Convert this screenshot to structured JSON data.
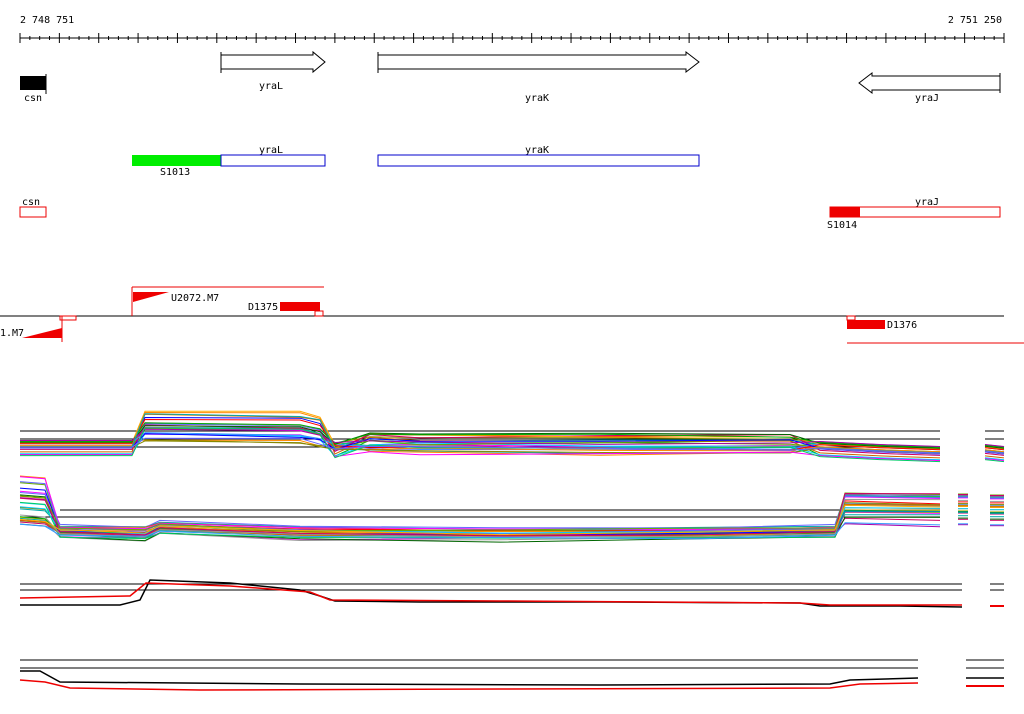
{
  "browser": {
    "coord_start": "2 748 751",
    "coord_end": "2 751 250"
  },
  "genes": [
    {
      "id": "csn",
      "label": "csn",
      "strand": "+",
      "kind": "block"
    },
    {
      "id": "yraL",
      "label": "yraL",
      "strand": "+",
      "kind": "arrow"
    },
    {
      "id": "yraK",
      "label": "yraK",
      "strand": "+",
      "kind": "arrow"
    },
    {
      "id": "yraJ",
      "label": "yraJ",
      "strand": "-",
      "kind": "arrow"
    }
  ],
  "transcripts": [
    {
      "id": "yraL-t",
      "label": "yraL",
      "color": "#0000cc",
      "segment": "S1013",
      "segment_color": "#00ee00"
    },
    {
      "id": "yraK-t",
      "label": "yraK",
      "color": "#0000cc"
    }
  ],
  "red_transcripts": [
    {
      "id": "csn-t",
      "label": "csn",
      "color": "#ee0000"
    },
    {
      "id": "yraJ-t",
      "label": "yraJ",
      "color": "#ee0000",
      "segment": "S1014"
    }
  ],
  "features": [
    {
      "id": "u2072",
      "label": "U2072.M7"
    },
    {
      "id": "d1375",
      "label": "D1375"
    },
    {
      "id": "left-m7",
      "label": "1.M7"
    },
    {
      "id": "d1376",
      "label": "D1376"
    }
  ],
  "colors": {
    "arrow_fill": "#ffffff",
    "gene_block": "#000000",
    "transcript_blue": "#0000cc",
    "red": "#ee0000",
    "green": "#00ee00"
  }
}
